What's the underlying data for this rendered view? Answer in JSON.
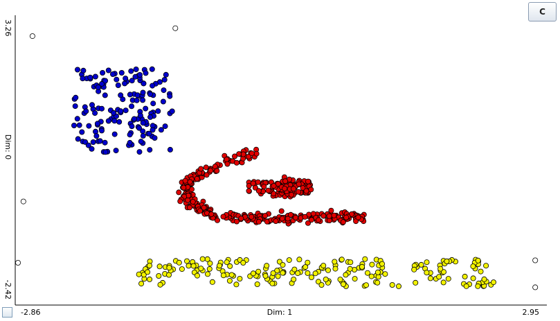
{
  "toolbar": {
    "c_button_label": "C"
  },
  "chart_data": {
    "type": "scatter",
    "title": "",
    "xlabel": "Dim: 1",
    "ylabel": "Dim: 0",
    "x_min_label": "-2.86",
    "x_max_label": "2.95",
    "y_min_label": "-2.42",
    "y_max_label": "3.26",
    "xlim": [
      -2.86,
      2.95
    ],
    "ylim": [
      -2.42,
      3.26
    ],
    "grid": false,
    "legend": "none",
    "series": [
      {
        "color": "#0000cc",
        "generator": "cluster",
        "count": 160,
        "center": [
          -1.7,
          1.4
        ],
        "spread": [
          0.55,
          0.85
        ]
      },
      {
        "color": "#e00000",
        "generator": "hook",
        "count": 420,
        "points": [
          [
            -0.25,
            0.55
          ],
          [
            -0.55,
            0.38
          ],
          [
            -0.82,
            0.15
          ],
          [
            -0.98,
            -0.05
          ],
          [
            -1.0,
            -0.28
          ],
          [
            -0.92,
            -0.52
          ],
          [
            -0.75,
            -0.7
          ],
          [
            -0.5,
            -0.78
          ],
          [
            -0.2,
            -0.8
          ],
          [
            0.1,
            -0.8
          ],
          [
            0.4,
            -0.79
          ],
          [
            0.7,
            -0.78
          ],
          [
            0.98,
            -0.77
          ]
        ],
        "spiral_center": [
          0.06,
          -0.16
        ]
      },
      {
        "color": "#f2f200",
        "generator": "band",
        "count": 200,
        "x_range": [
          -1.55,
          2.4
        ],
        "y_center": -1.9,
        "y_spread": 0.28
      },
      {
        "color": "#ffffff",
        "generator": "list",
        "points": [
          [
            -2.7,
            2.92
          ],
          [
            -1.12,
            3.08
          ],
          [
            -2.8,
            -0.45
          ],
          [
            -2.86,
            -1.7
          ],
          [
            2.86,
            -1.65
          ],
          [
            2.86,
            -2.2
          ]
        ]
      }
    ]
  }
}
